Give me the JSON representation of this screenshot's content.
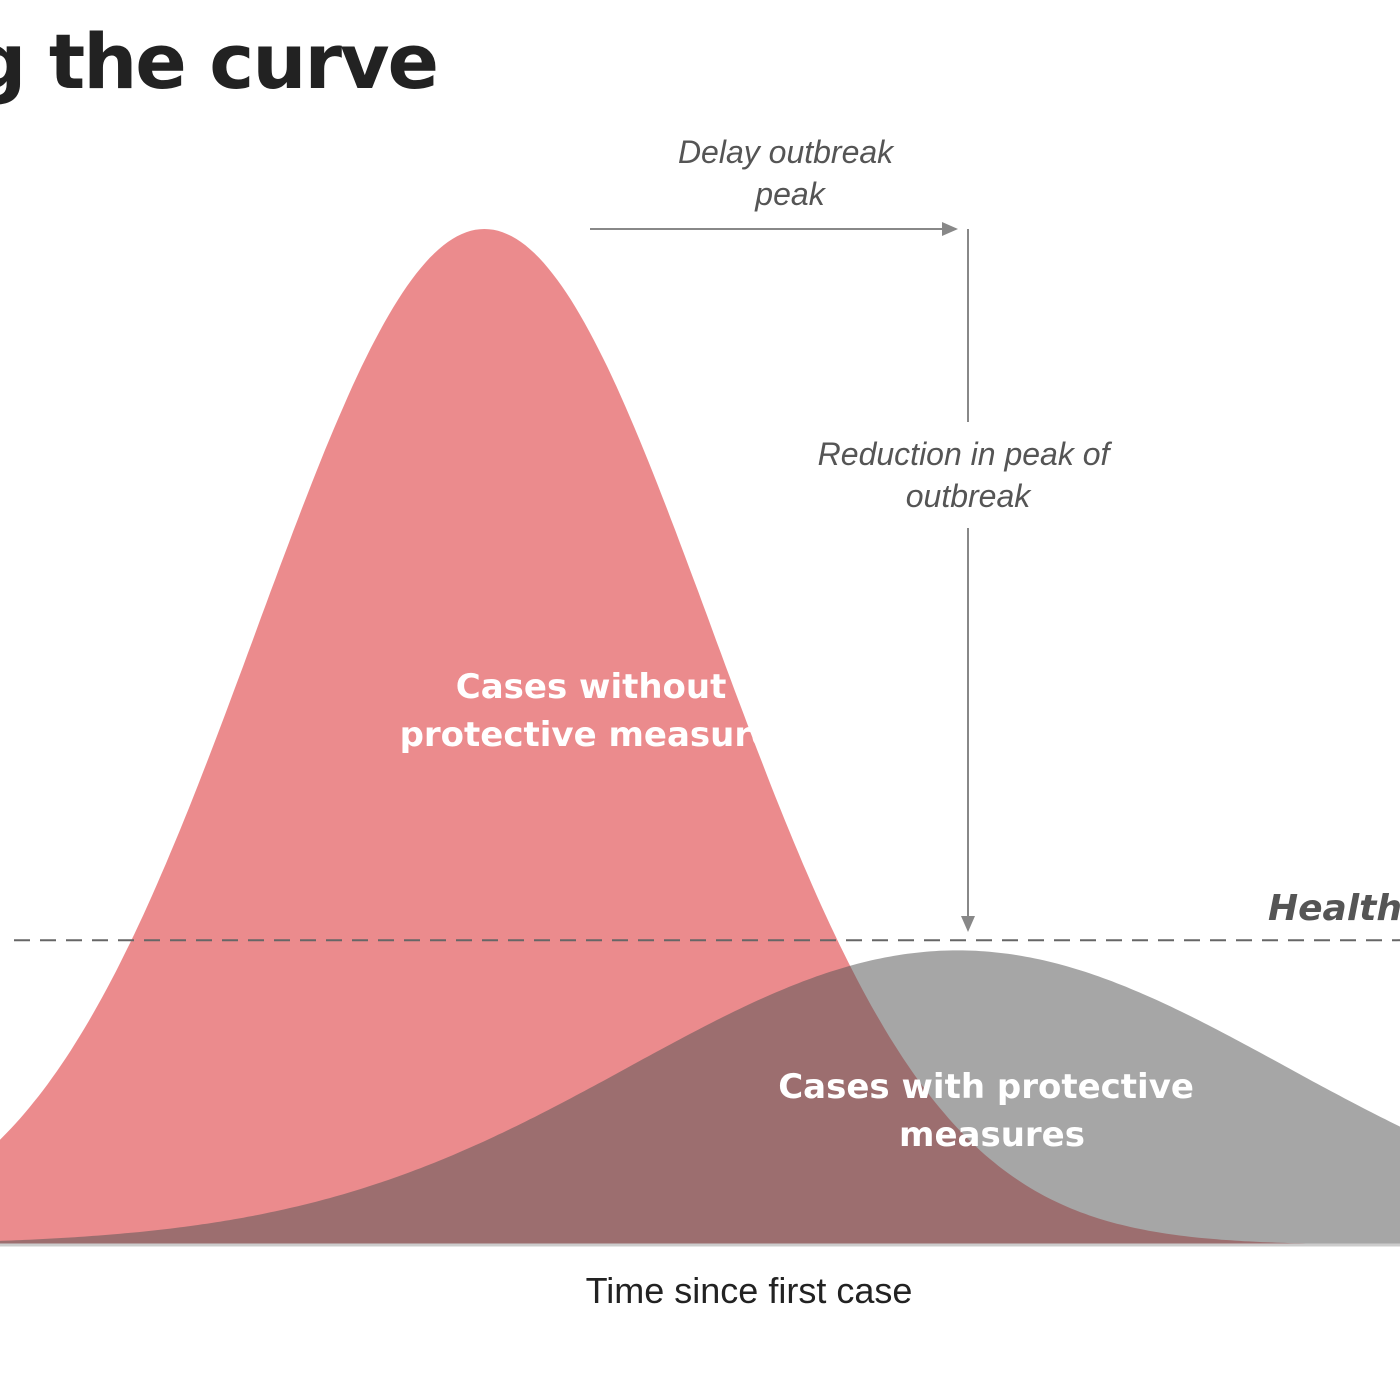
{
  "title": "g the curve",
  "chart_data": {
    "type": "area",
    "xlabel": "Time since first case",
    "ylabel": "",
    "xlim": [
      0,
      100
    ],
    "ylim": [
      0,
      100
    ],
    "series": [
      {
        "name": "Cases without protective measures",
        "name_lines": [
          "Cases without",
          "protective measures"
        ],
        "color": "#e35a5d",
        "opacity": 0.7,
        "peak_x": 42,
        "peak_y": 100,
        "spread": 12.5
      },
      {
        "name": "Cases with protective measures",
        "name_lines": [
          "Cases with protective",
          "measures"
        ],
        "color": "#555555",
        "opacity": 0.52,
        "peak_x": 68,
        "peak_y": 29,
        "spread": 18
      }
    ],
    "capacity": {
      "label": "Health c",
      "value": 30
    },
    "annotations": [
      {
        "id": "delay",
        "lines": [
          "Delay outbreak",
          "peak"
        ]
      },
      {
        "id": "reduction",
        "lines": [
          "Reduction in peak of",
          "outbreak"
        ]
      }
    ]
  },
  "colors": {
    "title": "#222222",
    "annotation": "#555555",
    "arrow": "#888888",
    "axis": "#cccccc",
    "capacity_line": "#666666"
  }
}
